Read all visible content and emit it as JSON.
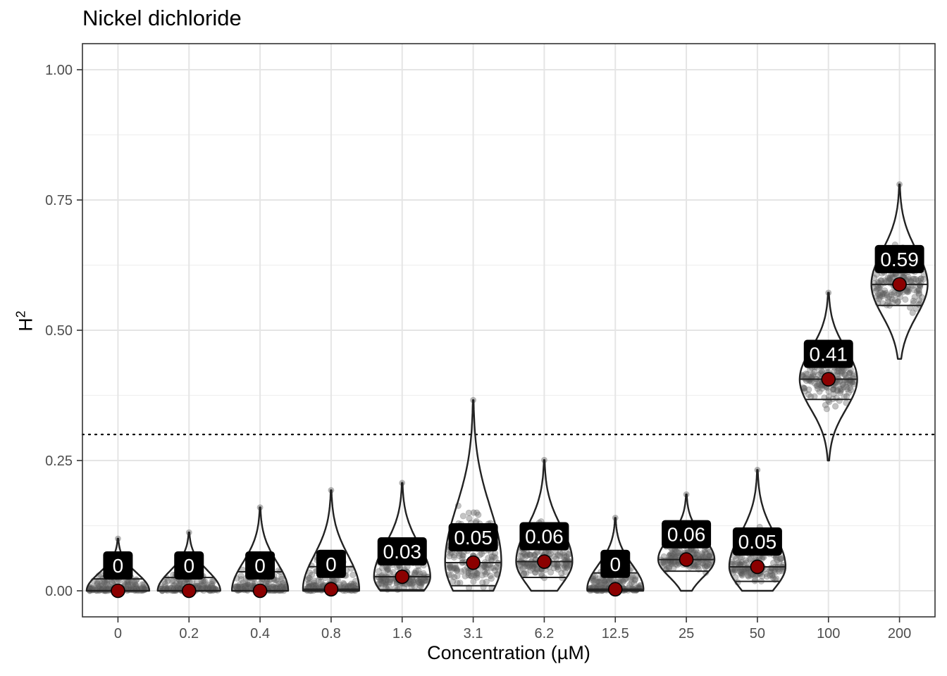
{
  "chart_data": {
    "type": "violin",
    "title": "Nickel dichloride",
    "xlabel": "Concentration (µM)",
    "ylabel": "H",
    "ylabel_superscript": "2",
    "categories": [
      "0",
      "0.2",
      "0.4",
      "0.8",
      "1.6",
      "3.1",
      "6.2",
      "12.5",
      "25",
      "50",
      "100",
      "200"
    ],
    "median_values": [
      0,
      0,
      0,
      0.003,
      0.027,
      0.054,
      0.056,
      0.003,
      0.06,
      0.046,
      0.406,
      0.588
    ],
    "label_values": [
      "0",
      "0",
      "0",
      "0",
      "0.03",
      "0.05",
      "0.06",
      "0",
      "0.06",
      "0.05",
      "0.41",
      "0.59"
    ],
    "min_values": [
      0,
      0,
      0,
      0,
      0,
      0,
      0,
      0,
      0,
      0,
      0.25,
      0.445
    ],
    "max_values": [
      0.1,
      0.112,
      0.16,
      0.193,
      0.207,
      0.366,
      0.251,
      0.14,
      0.185,
      0.232,
      0.572,
      0.78
    ],
    "reference_line": 0.3,
    "ylim": [
      -0.05,
      1.05
    ],
    "yticks": [
      0,
      0.25,
      0.5,
      0.75,
      1.0
    ],
    "ytick_labels": [
      "0.00",
      "0.25",
      "0.50",
      "0.75",
      "1.00"
    ],
    "grid": true,
    "colors": {
      "point": "#8b0000",
      "violin_stroke": "#222222",
      "jitter": "#555555",
      "label_bg": "#000000",
      "label_text": "#ffffff",
      "grid": "#e5e5e5"
    }
  }
}
